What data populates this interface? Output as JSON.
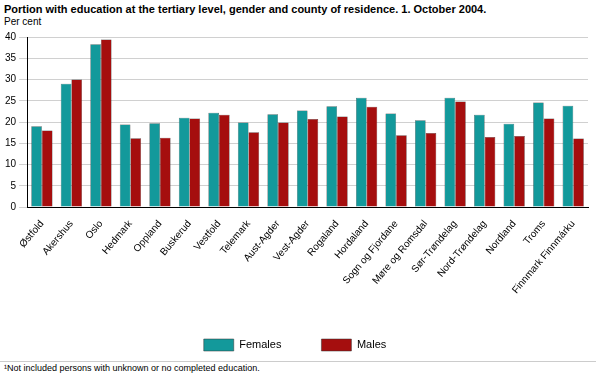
{
  "chart_data": {
    "type": "bar",
    "title": "Portion with education at the tertiary level, gender and county of residence. 1. October 2004.",
    "ylabel": "Per cent",
    "footnote": "¹Not included persons with unknown or no completed education.",
    "categories": [
      "Østfold",
      "Akershus",
      "Oslo",
      "Hedmark",
      "Oppland",
      "Buskerud",
      "Vestfold",
      "Telemark",
      "Aust-Agder",
      "Vest-Agder",
      "Rogaland",
      "Hordaland",
      "Sogn og Fjordane",
      "Møre og Romsdal",
      "Sør-Trøndelag",
      "Nord-Trøndelag",
      "Nordland",
      "Troms",
      "Finnmark Finnmárku"
    ],
    "series": [
      {
        "name": "Females",
        "color": "#13999b",
        "values": [
          19.0,
          29.0,
          38.3,
          19.4,
          19.7,
          21.0,
          22.2,
          19.9,
          21.8,
          22.7,
          23.7,
          25.7,
          22.0,
          20.4,
          25.7,
          21.7,
          19.6,
          24.6,
          23.8
        ]
      },
      {
        "name": "Males",
        "color": "#a50e0e",
        "values": [
          18.0,
          30.0,
          39.4,
          16.2,
          16.3,
          20.8,
          21.7,
          17.6,
          19.9,
          20.7,
          21.3,
          23.6,
          16.9,
          17.4,
          24.8,
          16.5,
          16.7,
          20.8,
          16.1
        ]
      }
    ],
    "ylim": [
      0,
      40
    ],
    "yticks": [
      0,
      5,
      10,
      15,
      20,
      25,
      30,
      35,
      40
    ],
    "grid": true,
    "legend": "bottom"
  }
}
